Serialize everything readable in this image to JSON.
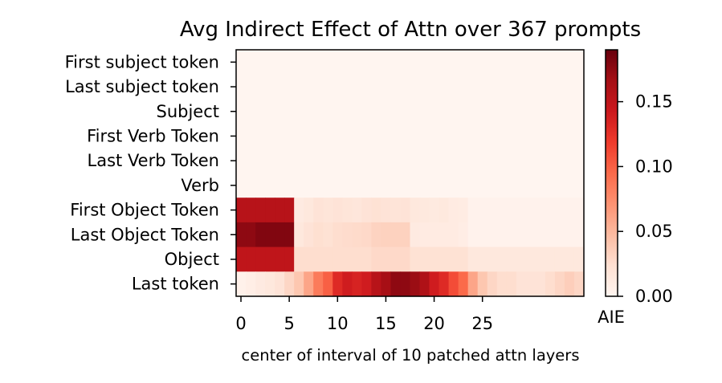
{
  "chart_data": {
    "type": "heatmap",
    "title": "Avg Indirect Effect of Attn over 367 prompts",
    "xlabel": "center of interval of 10 patched attn layers",
    "ylabel": "",
    "rows": [
      "First subject token",
      "Last subject token",
      "Subject",
      "First Verb Token",
      "Last Verb Token",
      "Verb",
      "First Object Token",
      "Last Object Token",
      "Object",
      "Last token"
    ],
    "x": [
      0,
      1,
      2,
      3,
      4,
      5,
      6,
      7,
      8,
      9,
      10,
      11,
      12,
      13,
      14,
      15,
      16,
      17,
      18,
      19,
      20,
      21,
      22,
      23,
      24,
      25,
      26,
      27,
      28,
      29,
      30,
      31,
      32,
      33,
      34,
      35
    ],
    "x_ticks": [
      0,
      5,
      10,
      15,
      20,
      25
    ],
    "colorbar": {
      "label": "AIE",
      "min": 0.0,
      "max": 0.19,
      "ticks": [
        "0.00",
        "0.05",
        "0.10",
        "0.15"
      ],
      "tick_values": [
        0.0,
        0.05,
        0.1,
        0.15
      ]
    },
    "colormap": "Reds",
    "values": [
      [
        0,
        0,
        0,
        0,
        0,
        0,
        0,
        0,
        0,
        0,
        0,
        0,
        0,
        0,
        0,
        0,
        0,
        0,
        0,
        0,
        0,
        0,
        0,
        0,
        0,
        0,
        0,
        0,
        0,
        0,
        0,
        0,
        0,
        0,
        0,
        0
      ],
      [
        0,
        0,
        0,
        0,
        0,
        0,
        0,
        0,
        0,
        0,
        0,
        0,
        0,
        0,
        0,
        0,
        0,
        0,
        0,
        0,
        0,
        0,
        0,
        0,
        0,
        0,
        0,
        0,
        0,
        0,
        0,
        0,
        0,
        0,
        0,
        0
      ],
      [
        0,
        0,
        0,
        0,
        0,
        0,
        0,
        0,
        0,
        0,
        0,
        0,
        0,
        0,
        0,
        0,
        0,
        0,
        0,
        0,
        0,
        0,
        0,
        0,
        0,
        0,
        0,
        0,
        0,
        0,
        0,
        0,
        0,
        0,
        0,
        0
      ],
      [
        0,
        0,
        0,
        0,
        0,
        0,
        0,
        0,
        0,
        0,
        0,
        0,
        0,
        0,
        0,
        0,
        0,
        0,
        0,
        0,
        0,
        0,
        0,
        0,
        0,
        0,
        0,
        0,
        0,
        0,
        0,
        0,
        0,
        0,
        0,
        0
      ],
      [
        0,
        0,
        0,
        0,
        0,
        0,
        0,
        0,
        0,
        0,
        0,
        0,
        0,
        0,
        0,
        0,
        0,
        0,
        0,
        0,
        0,
        0,
        0,
        0,
        0,
        0,
        0,
        0,
        0,
        0,
        0,
        0,
        0,
        0,
        0,
        0
      ],
      [
        0,
        0,
        0,
        0,
        0,
        0,
        0,
        0,
        0,
        0,
        0,
        0,
        0,
        0,
        0,
        0,
        0,
        0,
        0,
        0,
        0,
        0,
        0,
        0,
        0,
        0,
        0,
        0,
        0,
        0,
        0,
        0,
        0,
        0,
        0,
        0
      ],
      [
        0.155,
        0.155,
        0.155,
        0.155,
        0.155,
        0.155,
        0.012,
        0.015,
        0.02,
        0.018,
        0.02,
        0.018,
        0.017,
        0.02,
        0.022,
        0.02,
        0.019,
        0.02,
        0.015,
        0.014,
        0.013,
        0.014,
        0.011,
        0.01,
        0.003,
        0.003,
        0.003,
        0.003,
        0.003,
        0.003,
        0.003,
        0.003,
        0.003,
        0.003,
        0.003,
        0.003
      ],
      [
        0.175,
        0.175,
        0.18,
        0.18,
        0.18,
        0.18,
        0.015,
        0.02,
        0.024,
        0.022,
        0.025,
        0.026,
        0.027,
        0.028,
        0.032,
        0.033,
        0.033,
        0.033,
        0.012,
        0.011,
        0.011,
        0.011,
        0.011,
        0.009,
        0.003,
        0.003,
        0.003,
        0.003,
        0.003,
        0.003,
        0.003,
        0.003,
        0.003,
        0.003,
        0.003,
        0.003
      ],
      [
        0.15,
        0.15,
        0.15,
        0.15,
        0.15,
        0.15,
        0.025,
        0.025,
        0.025,
        0.025,
        0.025,
        0.025,
        0.025,
        0.025,
        0.028,
        0.028,
        0.028,
        0.028,
        0.022,
        0.022,
        0.022,
        0.022,
        0.022,
        0.022,
        0.015,
        0.015,
        0.015,
        0.015,
        0.015,
        0.015,
        0.015,
        0.015,
        0.015,
        0.015,
        0.015,
        0.015
      ],
      [
        0.005,
        0.008,
        0.012,
        0.015,
        0.02,
        0.03,
        0.04,
        0.06,
        0.085,
        0.1,
        0.13,
        0.14,
        0.135,
        0.14,
        0.155,
        0.165,
        0.175,
        0.175,
        0.17,
        0.16,
        0.14,
        0.13,
        0.11,
        0.095,
        0.06,
        0.04,
        0.03,
        0.025,
        0.025,
        0.02,
        0.02,
        0.02,
        0.025,
        0.03,
        0.035,
        0.03
      ]
    ]
  }
}
